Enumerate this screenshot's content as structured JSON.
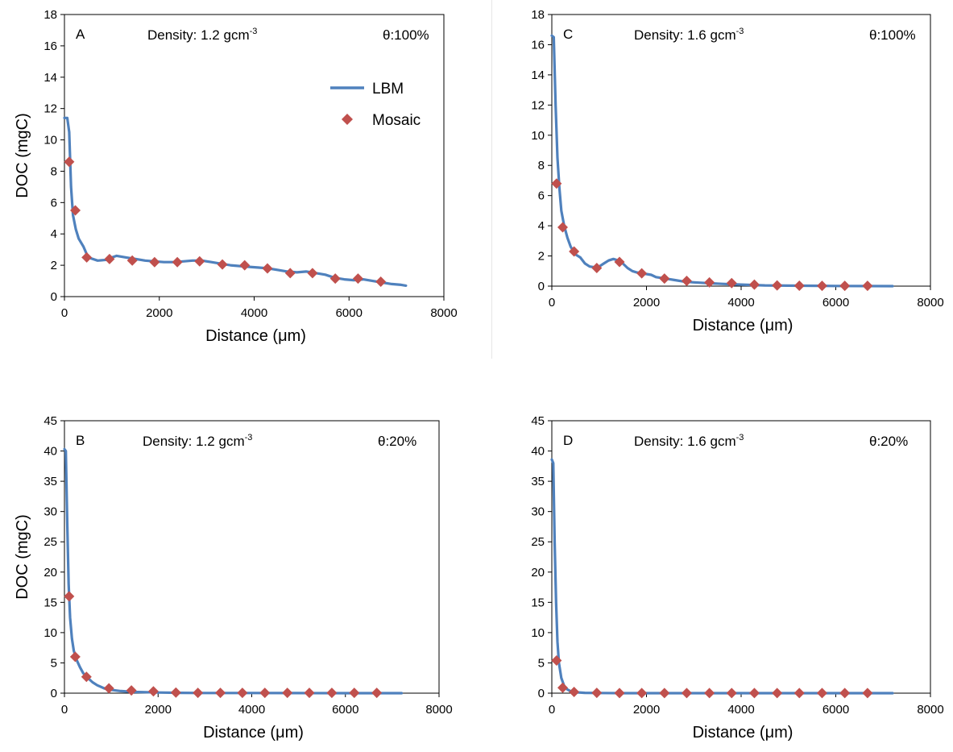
{
  "colors": {
    "line": "#4F81BD",
    "marker": "#C0504D",
    "axis": "#000000",
    "text": "#000000"
  },
  "chart_data": [
    {
      "type": "line",
      "panel_label": "A",
      "density_label": "Density: 1.2 gcm",
      "density_exp": "-3",
      "theta_label": "θ:100%",
      "xlabel": "Distance (μm)",
      "ylabel": "DOC (mgC)",
      "xlim": [
        0,
        8000
      ],
      "ylim": [
        0,
        18
      ],
      "xticks": [
        0,
        2000,
        4000,
        6000,
        8000
      ],
      "yticks": [
        0,
        2,
        4,
        6,
        8,
        10,
        12,
        14,
        16,
        18
      ],
      "legend": {
        "position": "top-right",
        "entries": [
          "LBM",
          "Mosaic"
        ]
      },
      "series": [
        {
          "name": "LBM",
          "kind": "line",
          "x": [
            0,
            60,
            100,
            140,
            180,
            240,
            300,
            400,
            500,
            700,
            900,
            1000,
            1100,
            1300,
            1500,
            1700,
            1900,
            2100,
            2300,
            2500,
            2700,
            2900,
            3100,
            3300,
            3500,
            3700,
            3900,
            4100,
            4300,
            4500,
            4700,
            4900,
            5100,
            5300,
            5500,
            5700,
            5900,
            6100,
            6300,
            6500,
            6700,
            6900,
            7100,
            7200
          ],
          "y": [
            11.4,
            11.4,
            10.5,
            7.0,
            5.2,
            4.3,
            3.7,
            3.2,
            2.5,
            2.3,
            2.35,
            2.5,
            2.6,
            2.5,
            2.4,
            2.3,
            2.25,
            2.2,
            2.2,
            2.25,
            2.3,
            2.3,
            2.2,
            2.1,
            2.0,
            1.95,
            1.9,
            1.85,
            1.8,
            1.7,
            1.6,
            1.55,
            1.6,
            1.5,
            1.4,
            1.2,
            1.1,
            1.05,
            1.1,
            1.0,
            0.9,
            0.8,
            0.75,
            0.7
          ]
        },
        {
          "name": "Mosaic",
          "kind": "marker",
          "x": [
            100,
            230,
            470,
            950,
            1430,
            1900,
            2380,
            2850,
            3330,
            3800,
            4280,
            4760,
            5230,
            5710,
            6190,
            6670
          ],
          "y": [
            8.6,
            5.5,
            2.5,
            2.4,
            2.3,
            2.2,
            2.2,
            2.25,
            2.05,
            2.0,
            1.8,
            1.5,
            1.5,
            1.15,
            1.15,
            0.95
          ]
        }
      ]
    },
    {
      "type": "line",
      "panel_label": "C",
      "density_label": "Density: 1.6 gcm",
      "density_exp": "-3",
      "theta_label": "θ:100%",
      "xlabel": "Distance (μm)",
      "ylabel": "",
      "xlim": [
        0,
        8000
      ],
      "ylim": [
        0,
        18
      ],
      "xticks": [
        0,
        2000,
        4000,
        6000,
        8000
      ],
      "yticks": [
        0,
        2,
        4,
        6,
        8,
        10,
        12,
        14,
        16,
        18
      ],
      "series": [
        {
          "name": "LBM",
          "kind": "line",
          "x": [
            0,
            40,
            80,
            120,
            160,
            200,
            260,
            330,
            400,
            500,
            600,
            700,
            800,
            900,
            1000,
            1100,
            1200,
            1300,
            1400,
            1500,
            1600,
            1700,
            1800,
            1900,
            2000,
            2100,
            2200,
            2400,
            2600,
            2800,
            3000,
            3300,
            3600,
            4000,
            4500,
            5000,
            6000,
            7200
          ],
          "y": [
            16.6,
            16.5,
            12.0,
            8.5,
            6.5,
            5.0,
            4.0,
            3.2,
            2.6,
            2.1,
            1.9,
            1.5,
            1.3,
            1.25,
            1.3,
            1.5,
            1.7,
            1.8,
            1.7,
            1.5,
            1.2,
            1.0,
            0.9,
            0.85,
            0.8,
            0.75,
            0.6,
            0.5,
            0.4,
            0.3,
            0.25,
            0.2,
            0.15,
            0.1,
            0.05,
            0.03,
            0.01,
            0.0
          ]
        },
        {
          "name": "Mosaic",
          "kind": "marker",
          "x": [
            100,
            230,
            470,
            950,
            1430,
            1900,
            2380,
            2850,
            3330,
            3800,
            4280,
            4760,
            5230,
            5710,
            6190,
            6670
          ],
          "y": [
            6.8,
            3.9,
            2.3,
            1.2,
            1.6,
            0.85,
            0.5,
            0.35,
            0.25,
            0.2,
            0.1,
            0.05,
            0.03,
            0.02,
            0.02,
            0.02
          ]
        }
      ]
    },
    {
      "type": "line",
      "panel_label": "B",
      "density_label": "Density: 1.2 gcm",
      "density_exp": "-3",
      "theta_label": "θ:20%",
      "xlabel": "Distance (μm)",
      "ylabel": "DOC (mgC)",
      "xlim": [
        0,
        8000
      ],
      "ylim": [
        0,
        45
      ],
      "xticks": [
        0,
        2000,
        4000,
        6000,
        8000
      ],
      "yticks": [
        0,
        5,
        10,
        15,
        20,
        25,
        30,
        35,
        40,
        45
      ],
      "series": [
        {
          "name": "LBM",
          "kind": "line",
          "x": [
            0,
            30,
            60,
            90,
            120,
            160,
            200,
            260,
            330,
            400,
            500,
            600,
            700,
            850,
            1000,
            1200,
            1500,
            2000,
            2500,
            3000,
            4000,
            5000,
            6000,
            7200
          ],
          "y": [
            40.3,
            40.0,
            28.0,
            18.0,
            12.5,
            9.0,
            7.0,
            5.5,
            4.3,
            3.3,
            2.5,
            1.8,
            1.3,
            0.8,
            0.55,
            0.35,
            0.2,
            0.1,
            0.05,
            0.03,
            0.02,
            0.01,
            0.0,
            0.0
          ]
        },
        {
          "name": "Mosaic",
          "kind": "marker",
          "x": [
            100,
            230,
            470,
            950,
            1430,
            1900,
            2380,
            2850,
            3330,
            3800,
            4280,
            4760,
            5230,
            5710,
            6190,
            6670
          ],
          "y": [
            16.0,
            6.0,
            2.7,
            0.8,
            0.45,
            0.3,
            0.1,
            0.05,
            0.05,
            0.05,
            0.05,
            0.05,
            0.05,
            0.05,
            0.05,
            0.05
          ]
        }
      ]
    },
    {
      "type": "line",
      "panel_label": "D",
      "density_label": "Density: 1.6 gcm",
      "density_exp": "-3",
      "theta_label": "θ:20%",
      "xlabel": "Distance (μm)",
      "ylabel": "",
      "xlim": [
        0,
        8000
      ],
      "ylim": [
        0,
        45
      ],
      "xticks": [
        0,
        2000,
        4000,
        6000,
        8000
      ],
      "yticks": [
        0,
        5,
        10,
        15,
        20,
        25,
        30,
        35,
        40,
        45
      ],
      "series": [
        {
          "name": "LBM",
          "kind": "line",
          "x": [
            0,
            30,
            60,
            90,
            120,
            150,
            200,
            260,
            330,
            400,
            500,
            700,
            1000,
            1500,
            2000,
            3000,
            5000,
            7200
          ],
          "y": [
            38.6,
            38.0,
            25.0,
            15.0,
            8.5,
            5.0,
            2.5,
            1.2,
            0.6,
            0.3,
            0.15,
            0.05,
            0.02,
            0.0,
            0.0,
            0.0,
            0.0,
            0.0
          ]
        },
        {
          "name": "Mosaic",
          "kind": "marker",
          "x": [
            100,
            230,
            470,
            950,
            1430,
            1900,
            2380,
            2850,
            3330,
            3800,
            4280,
            4760,
            5230,
            5710,
            6190,
            6670
          ],
          "y": [
            5.4,
            0.9,
            0.2,
            0.05,
            0.02,
            0.02,
            0.02,
            0.02,
            0.02,
            0.02,
            0.02,
            0.02,
            0.02,
            0.02,
            0.02,
            0.02
          ]
        }
      ]
    }
  ]
}
